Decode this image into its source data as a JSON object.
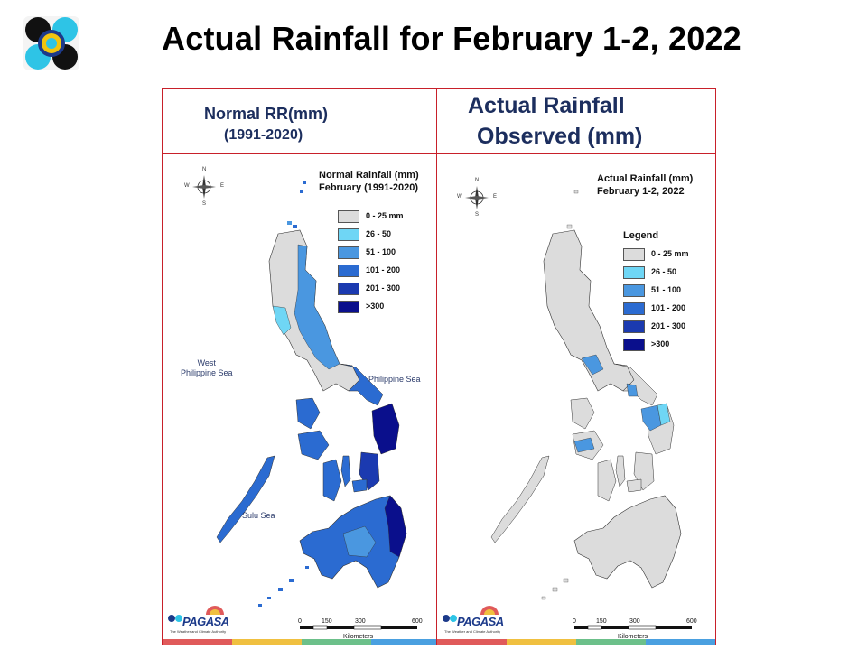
{
  "title": "Actual Rainfall for February 1-2, 2022",
  "logo": {
    "icon": "pagasa-seal-icon"
  },
  "panels": {
    "left": {
      "header_line1": "Normal RR(mm)",
      "header_line2": "(1991-2020)",
      "legend_title_line1": "Normal Rainfall (mm)",
      "legend_title_line2": "February (1991-2020)",
      "seas": {
        "west_line1": "West",
        "west_line2": "Philippine Sea",
        "east": "Philippine Sea",
        "south": "Sulu Sea"
      }
    },
    "right": {
      "header_line1": "Actual Rainfall",
      "header_line2": "Observed (mm)",
      "legend_title_line1": "Actual Rainfall (mm)",
      "legend_title_line2": "February 1-2, 2022",
      "legend_heading": "Legend"
    }
  },
  "legend_classes": [
    {
      "label": "0 - 25 mm",
      "color": "#dcdcdc"
    },
    {
      "label": "26 - 50",
      "color": "#6fd6f5"
    },
    {
      "label": "51 - 100",
      "color": "#4a97e0"
    },
    {
      "label": "101 - 200",
      "color": "#2b6bd1"
    },
    {
      "label": "201 - 300",
      "color": "#1b3ab0"
    },
    {
      "label": ">300",
      "color": "#0a0f8c"
    }
  ],
  "legend_classes_right": [
    {
      "label": "0 - 25 mm",
      "color": "#dcdcdc"
    },
    {
      "label": "26 - 50",
      "color": "#6fd6f5"
    },
    {
      "label": "51 - 100",
      "color": "#4a97e0"
    },
    {
      "label": "101 - 200",
      "color": "#2b6bd1"
    },
    {
      "label": "201 - 300",
      "color": "#1b3ab0"
    },
    {
      "label": ">300",
      "color": "#0a0f8c"
    }
  ],
  "compass": {
    "n": "N",
    "s": "S",
    "e": "E",
    "w": "W"
  },
  "scale_bar": {
    "ticks": [
      "0",
      "150",
      "300",
      "600"
    ],
    "unit": "Kilometers"
  },
  "brand": {
    "name": "PAGASA",
    "tagline": "The Weather and Climate Authority"
  },
  "strip_colors": [
    "#e05a5a",
    "#f0c040",
    "#6cc08a",
    "#4aa0e0"
  ]
}
